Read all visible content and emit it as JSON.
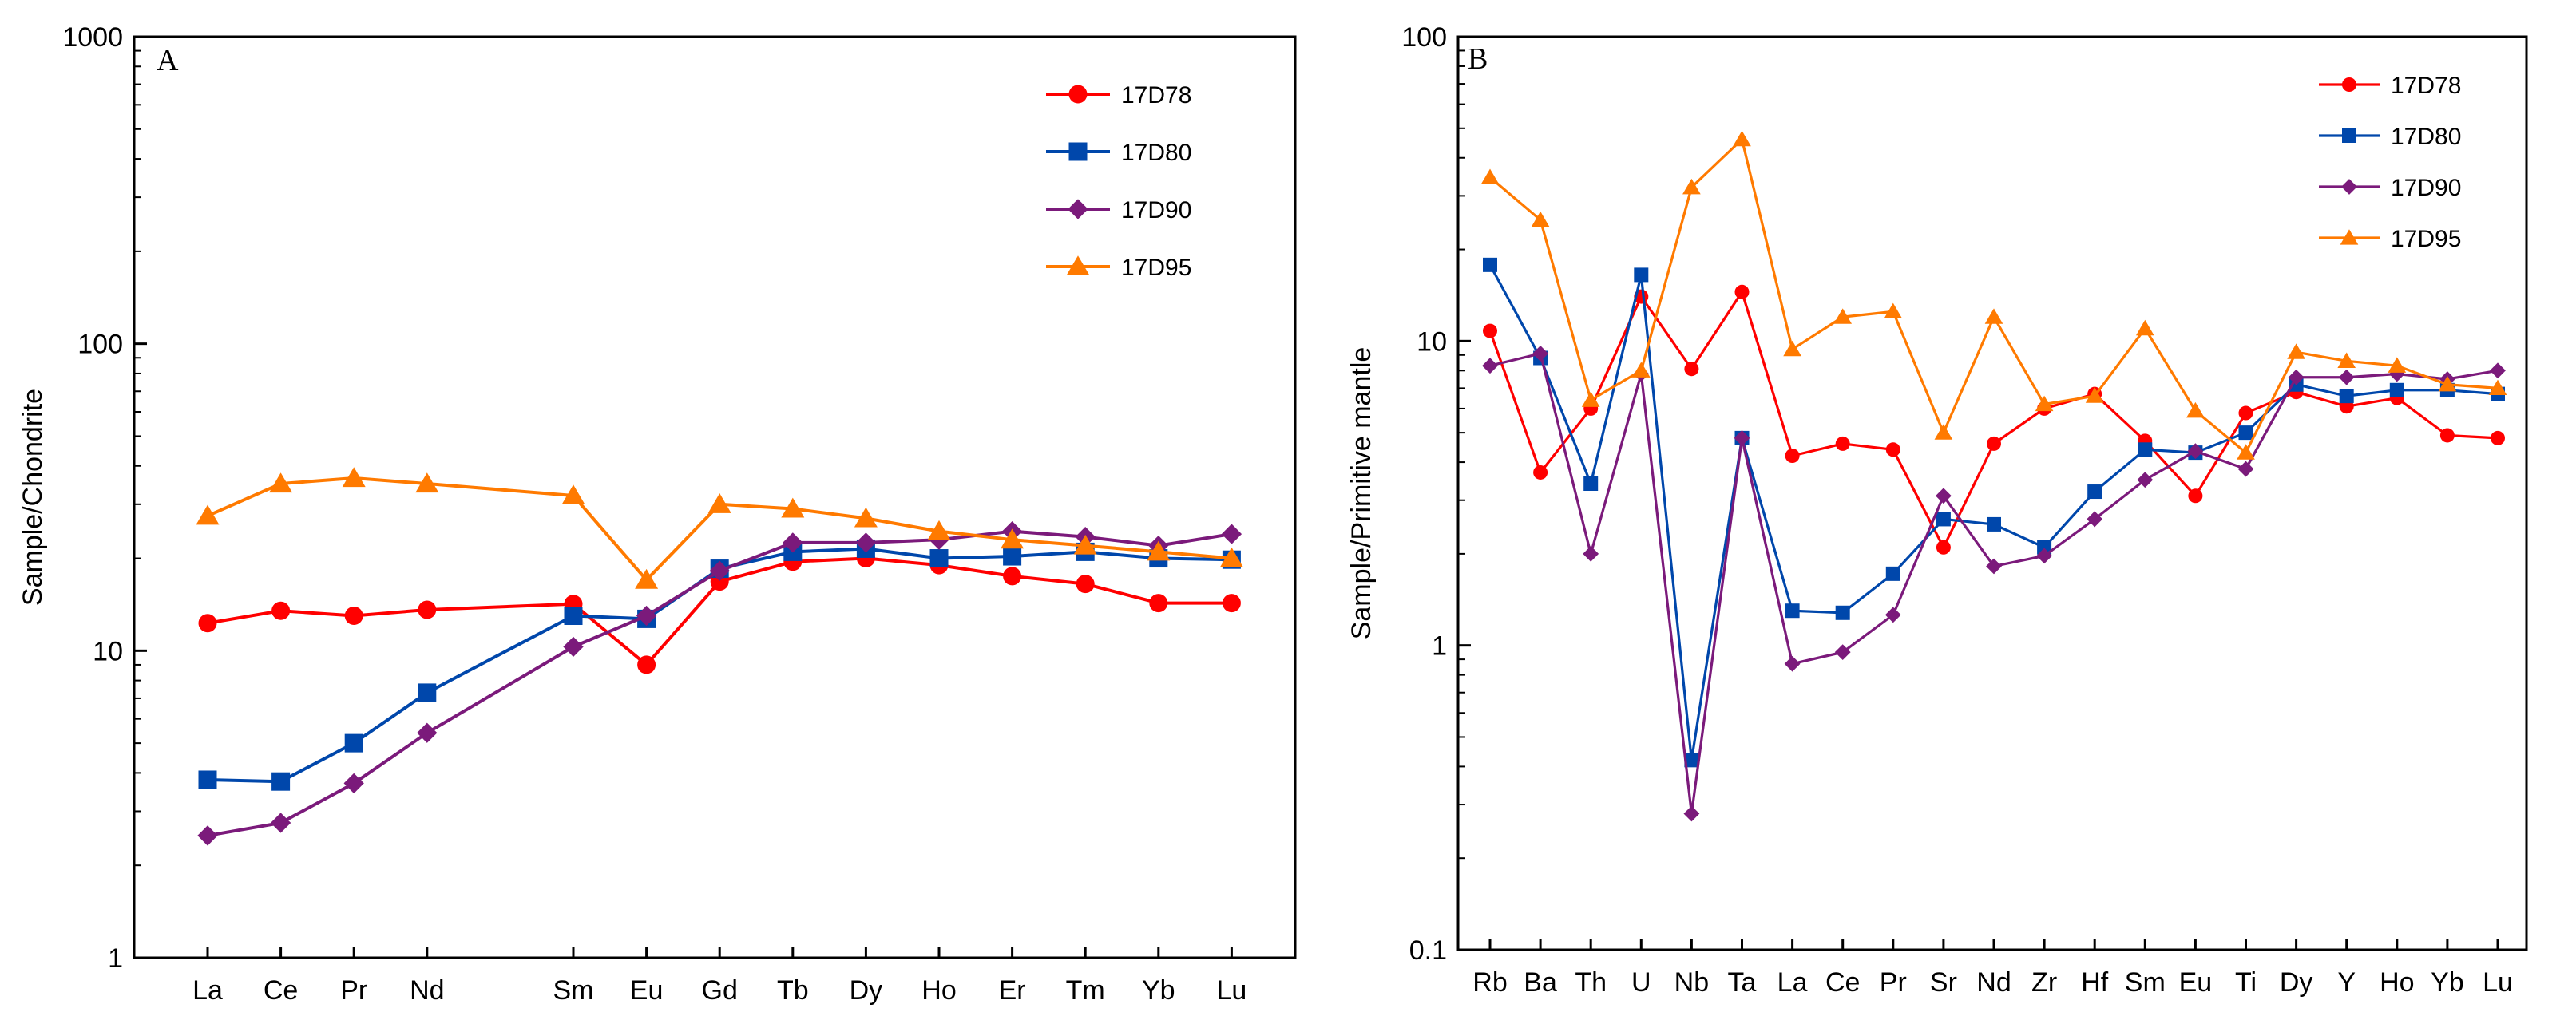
{
  "chart_data": [
    {
      "type": "line",
      "panel_label": "A",
      "title": "",
      "xlabel": "",
      "ylabel": "Sample/Chondrite",
      "yscale": "log",
      "ylim": [
        1,
        1000
      ],
      "ytick_labels": [
        "1",
        "10",
        "100",
        "1000"
      ],
      "grid": false,
      "legend_position": "top-right",
      "categories": [
        "La",
        "Ce",
        "Pr",
        "Nd",
        "Sm",
        "Eu",
        "Gd",
        "Tb",
        "Dy",
        "Ho",
        "Er",
        "Tm",
        "Yb",
        "Lu"
      ],
      "category_slots": [
        0,
        1,
        2,
        3,
        5,
        6,
        7,
        8,
        9,
        10,
        11,
        12,
        13,
        14
      ],
      "slot_count": 15,
      "series": [
        {
          "name": "17D78",
          "color": "#ff0000",
          "marker": "circle",
          "values": [
            12.3,
            13.5,
            13.0,
            13.6,
            14.2,
            9.0,
            16.8,
            19.5,
            20.0,
            19.0,
            17.5,
            16.5,
            14.3,
            14.3
          ]
        },
        {
          "name": "17D80",
          "color": "#0047ab",
          "marker": "square",
          "values": [
            3.8,
            3.75,
            5.0,
            7.3,
            13.0,
            12.7,
            18.5,
            21.0,
            21.5,
            20.0,
            20.3,
            21.0,
            20.0,
            19.8
          ]
        },
        {
          "name": "17D90",
          "color": "#7b1a7b",
          "marker": "diamond",
          "values": [
            2.5,
            2.75,
            3.7,
            5.4,
            10.3,
            13.0,
            18.2,
            22.5,
            22.5,
            23.0,
            24.5,
            23.5,
            22.0,
            24.0
          ]
        },
        {
          "name": "17D95",
          "color": "#ff7a00",
          "marker": "triangle",
          "values": [
            27.5,
            35.0,
            36.5,
            35.0,
            32.0,
            17.0,
            30.0,
            29.0,
            27.0,
            24.5,
            23.0,
            22.0,
            21.0,
            20.0
          ]
        }
      ]
    },
    {
      "type": "line",
      "panel_label": "B",
      "title": "",
      "xlabel": "",
      "ylabel": "Sample/Primitive mantle",
      "yscale": "log",
      "ylim": [
        0.1,
        100
      ],
      "ytick_labels": [
        "0.1",
        "1",
        "10",
        "100"
      ],
      "grid": false,
      "legend_position": "top-right",
      "categories": [
        "Rb",
        "Ba",
        "Th",
        "U",
        "Nb",
        "Ta",
        "La",
        "Ce",
        "Pr",
        "Sr",
        "Nd",
        "Zr",
        "Hf",
        "Sm",
        "Eu",
        "Ti",
        "Dy",
        "Y",
        "Ho",
        "Yb",
        "Lu"
      ],
      "category_slots": [
        0,
        1,
        2,
        3,
        4,
        5,
        6,
        7,
        8,
        9,
        10,
        11,
        12,
        13,
        14,
        15,
        16,
        17,
        18,
        19,
        20
      ],
      "slot_count": 21,
      "series": [
        {
          "name": "17D78",
          "color": "#ff0000",
          "marker": "circle",
          "values": [
            10.8,
            3.7,
            6.0,
            14.0,
            8.1,
            14.5,
            4.2,
            4.6,
            4.4,
            2.1,
            4.6,
            6.0,
            6.7,
            4.7,
            3.1,
            5.8,
            6.8,
            6.1,
            6.5,
            4.9,
            4.8
          ]
        },
        {
          "name": "17D80",
          "color": "#0047ab",
          "marker": "square",
          "values": [
            17.8,
            8.8,
            3.4,
            16.5,
            0.42,
            4.8,
            1.3,
            1.28,
            1.72,
            2.6,
            2.5,
            2.1,
            3.2,
            4.4,
            4.3,
            5.0,
            7.2,
            6.6,
            6.9,
            6.9,
            6.7
          ]
        },
        {
          "name": "17D90",
          "color": "#7b1a7b",
          "marker": "diamond",
          "values": [
            8.3,
            9.1,
            2.0,
            7.8,
            0.28,
            4.8,
            0.87,
            0.95,
            1.26,
            3.1,
            1.82,
            1.97,
            2.6,
            3.5,
            4.35,
            3.8,
            7.6,
            7.6,
            7.8,
            7.5,
            8.0
          ]
        },
        {
          "name": "17D95",
          "color": "#ff7a00",
          "marker": "triangle",
          "values": [
            34.5,
            25.0,
            6.4,
            8.0,
            32.0,
            46.0,
            9.4,
            12.0,
            12.5,
            5.0,
            12.0,
            6.2,
            6.6,
            11.0,
            5.9,
            4.3,
            9.2,
            8.6,
            8.3,
            7.2,
            7.0
          ]
        }
      ]
    }
  ]
}
